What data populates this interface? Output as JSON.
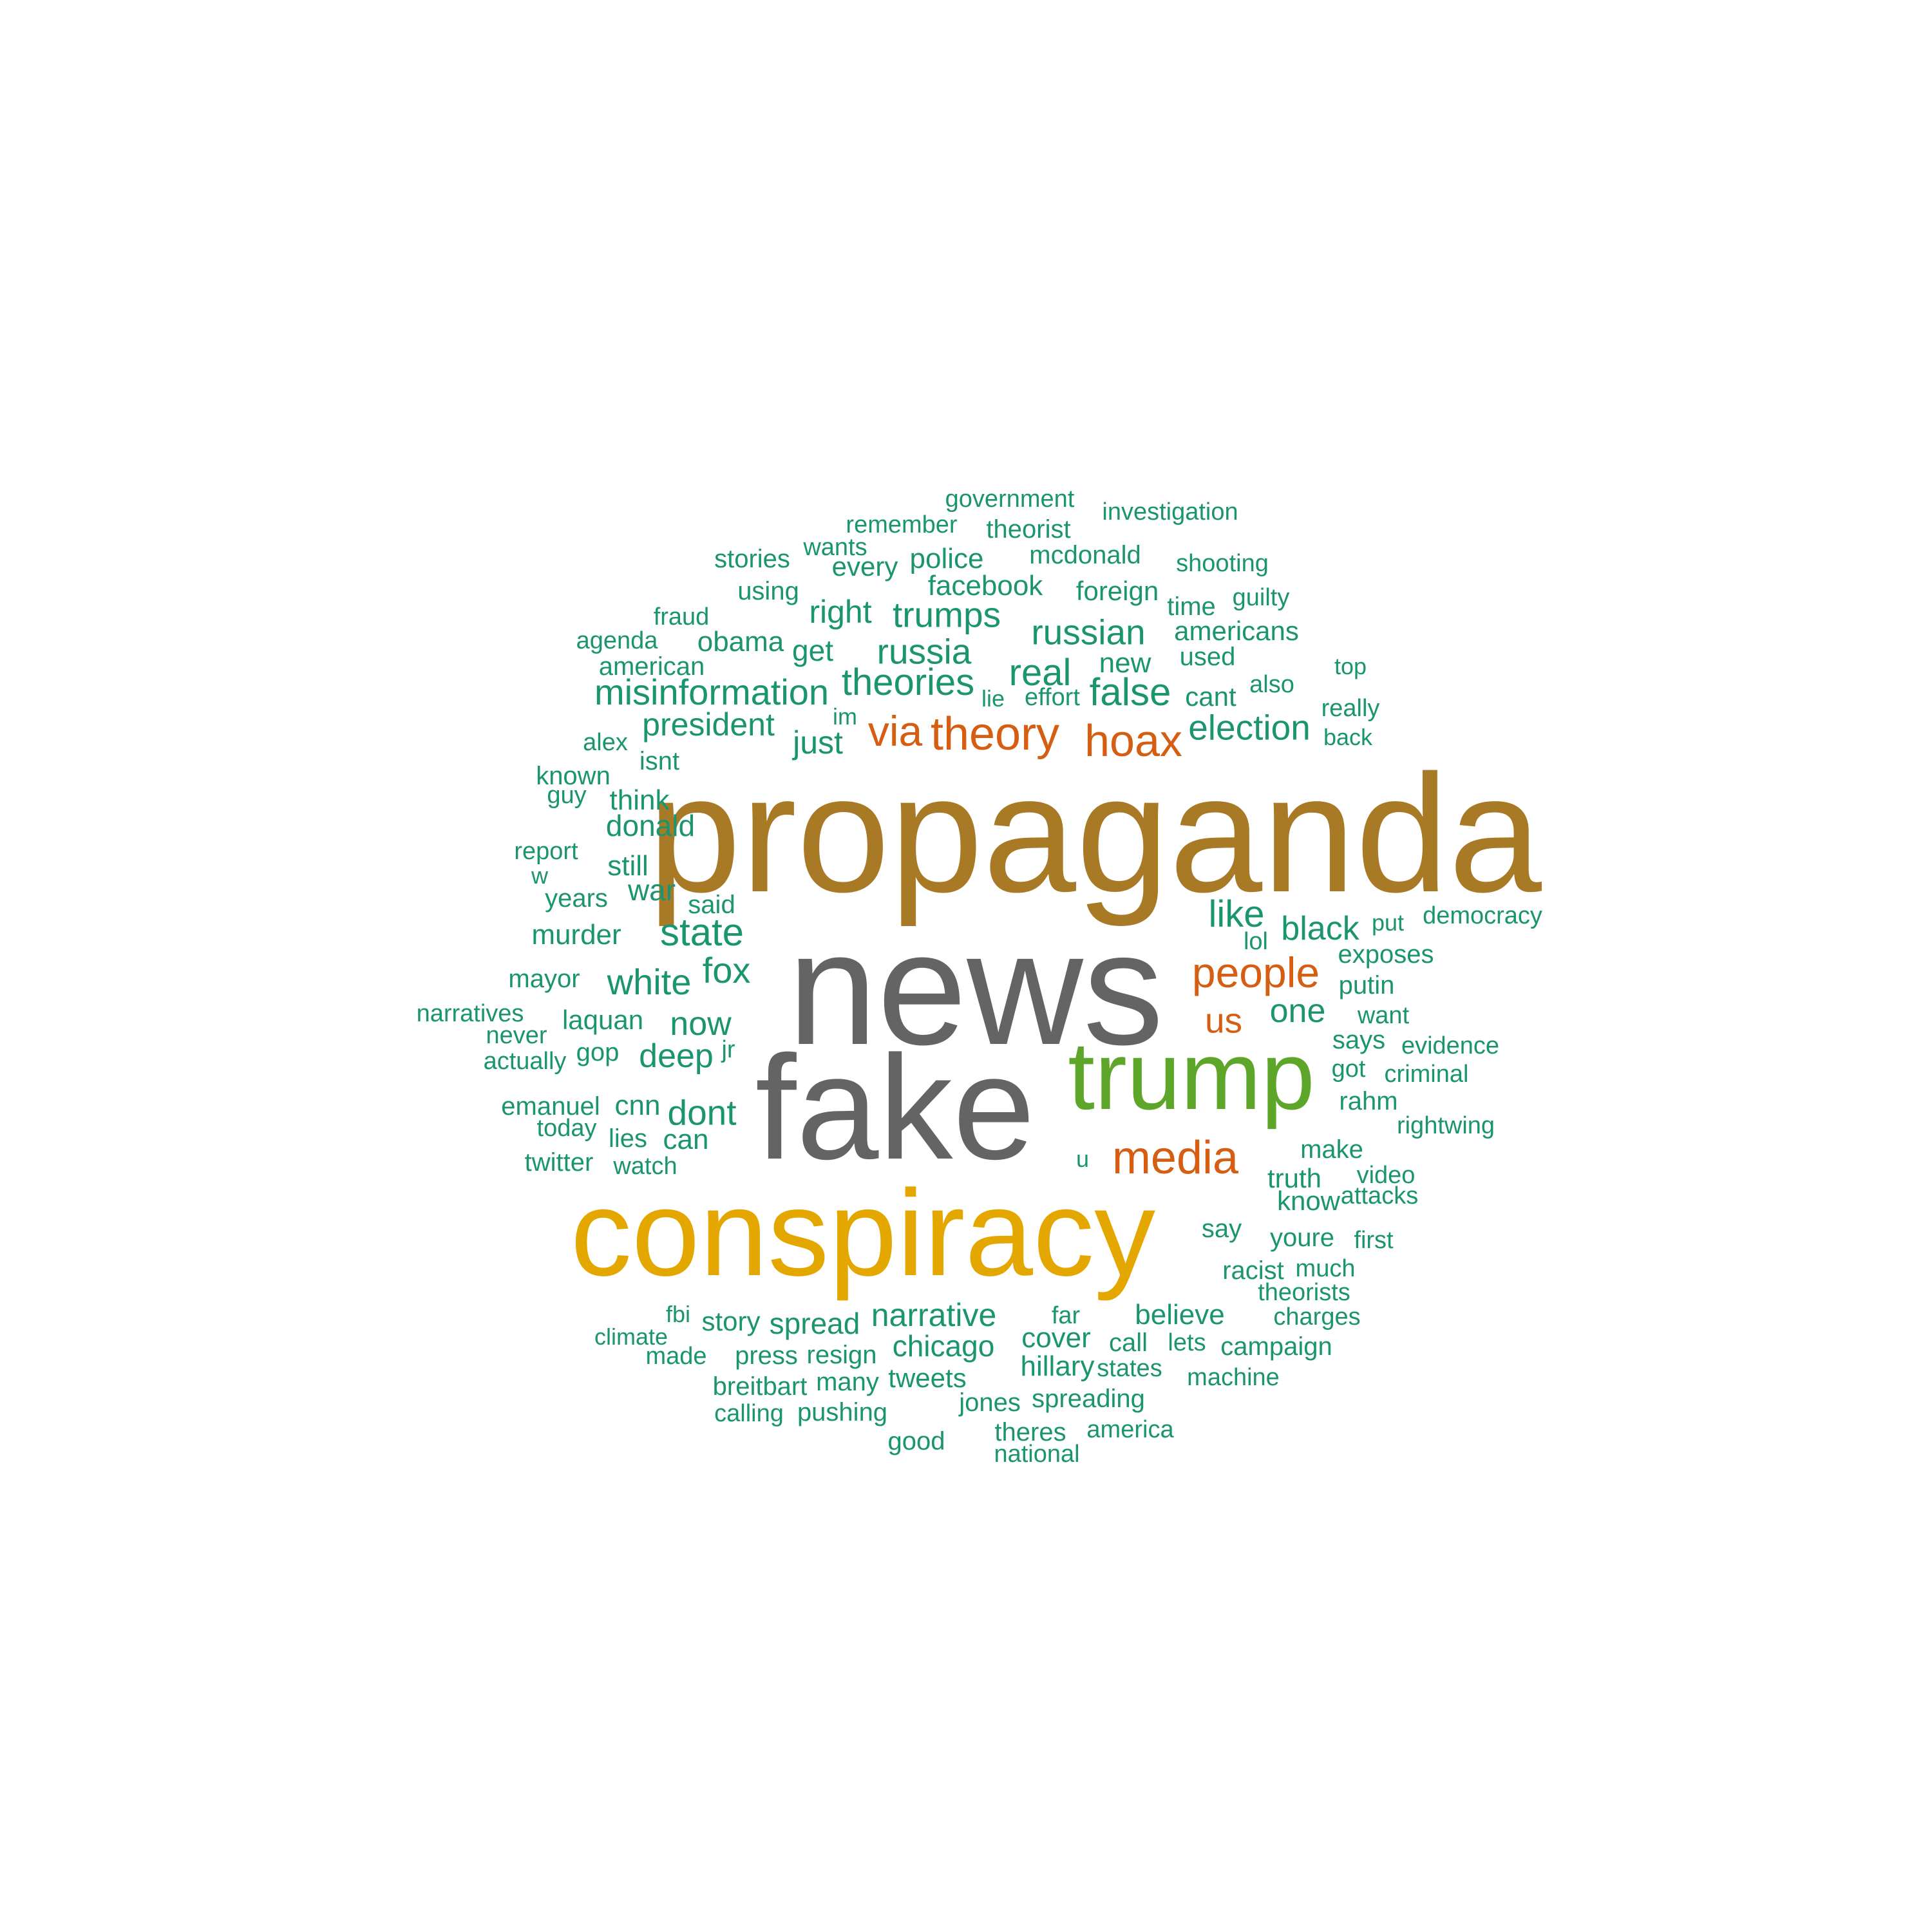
{
  "colors": {
    "gray": "#646464",
    "brown": "#a87a26",
    "gold": "#e4a700",
    "lime": "#5ea62a",
    "orange": "#d55e12",
    "teal": "#1b9570"
  },
  "words": [
    {
      "text": "propaganda",
      "color": "brown"
    },
    {
      "text": "news",
      "color": "gray"
    },
    {
      "text": "fake",
      "color": "gray"
    },
    {
      "text": "conspiracy",
      "color": "gold"
    },
    {
      "text": "trump",
      "color": "lime"
    },
    {
      "text": "media",
      "color": "orange"
    },
    {
      "text": "people",
      "color": "orange"
    },
    {
      "text": "hoax",
      "color": "orange"
    },
    {
      "text": "theory",
      "color": "orange"
    },
    {
      "text": "via",
      "color": "orange"
    },
    {
      "text": "us",
      "color": "orange"
    },
    {
      "text": "misinformation",
      "color": "teal"
    },
    {
      "text": "theories",
      "color": "teal"
    },
    {
      "text": "election",
      "color": "teal"
    },
    {
      "text": "false",
      "color": "teal"
    },
    {
      "text": "russian",
      "color": "teal"
    },
    {
      "text": "russia",
      "color": "teal"
    },
    {
      "text": "trumps",
      "color": "teal"
    },
    {
      "text": "real",
      "color": "teal"
    },
    {
      "text": "president",
      "color": "teal"
    },
    {
      "text": "just",
      "color": "teal"
    },
    {
      "text": "right",
      "color": "teal"
    },
    {
      "text": "state",
      "color": "teal"
    },
    {
      "text": "like",
      "color": "teal"
    },
    {
      "text": "black",
      "color": "teal"
    },
    {
      "text": "white",
      "color": "teal"
    },
    {
      "text": "fox",
      "color": "teal"
    },
    {
      "text": "now",
      "color": "teal"
    },
    {
      "text": "deep",
      "color": "teal"
    },
    {
      "text": "dont",
      "color": "teal"
    },
    {
      "text": "narrative",
      "color": "teal"
    },
    {
      "text": "chicago",
      "color": "teal"
    },
    {
      "text": "one",
      "color": "teal"
    },
    {
      "text": "get",
      "color": "teal"
    },
    {
      "text": "obama",
      "color": "teal"
    },
    {
      "text": "facebook",
      "color": "teal"
    },
    {
      "text": "police",
      "color": "teal"
    },
    {
      "text": "every",
      "color": "teal"
    },
    {
      "text": "donald",
      "color": "teal"
    },
    {
      "text": "think",
      "color": "teal"
    },
    {
      "text": "still",
      "color": "teal"
    },
    {
      "text": "war",
      "color": "teal"
    },
    {
      "text": "murder",
      "color": "teal"
    },
    {
      "text": "laquan",
      "color": "teal"
    },
    {
      "text": "cnn",
      "color": "teal"
    },
    {
      "text": "can",
      "color": "teal"
    },
    {
      "text": "story",
      "color": "teal"
    },
    {
      "text": "spread",
      "color": "teal"
    },
    {
      "text": "cover",
      "color": "teal"
    },
    {
      "text": "hillary",
      "color": "teal"
    },
    {
      "text": "believe",
      "color": "teal"
    },
    {
      "text": "call",
      "color": "teal"
    },
    {
      "text": "new",
      "color": "teal"
    },
    {
      "text": "cant",
      "color": "teal"
    },
    {
      "text": "used",
      "color": "teal"
    },
    {
      "text": "americans",
      "color": "teal"
    },
    {
      "text": "time",
      "color": "teal"
    },
    {
      "text": "foreign",
      "color": "teal"
    },
    {
      "text": "mcdonald",
      "color": "teal"
    },
    {
      "text": "theorist",
      "color": "teal"
    },
    {
      "text": "government",
      "color": "teal"
    },
    {
      "text": "remember",
      "color": "teal"
    },
    {
      "text": "investigation",
      "color": "teal"
    },
    {
      "text": "shooting",
      "color": "teal"
    },
    {
      "text": "guilty",
      "color": "teal"
    },
    {
      "text": "wants",
      "color": "teal"
    },
    {
      "text": "stories",
      "color": "teal"
    },
    {
      "text": "using",
      "color": "teal"
    },
    {
      "text": "fraud",
      "color": "teal"
    },
    {
      "text": "agenda",
      "color": "teal"
    },
    {
      "text": "american",
      "color": "teal"
    },
    {
      "text": "alex",
      "color": "teal"
    },
    {
      "text": "isnt",
      "color": "teal"
    },
    {
      "text": "known",
      "color": "teal"
    },
    {
      "text": "guy",
      "color": "teal"
    },
    {
      "text": "report",
      "color": "teal"
    },
    {
      "text": "w",
      "color": "teal"
    },
    {
      "text": "years",
      "color": "teal"
    },
    {
      "text": "said",
      "color": "teal"
    },
    {
      "text": "mayor",
      "color": "teal"
    },
    {
      "text": "narratives",
      "color": "teal"
    },
    {
      "text": "never",
      "color": "teal"
    },
    {
      "text": "actually",
      "color": "teal"
    },
    {
      "text": "gop",
      "color": "teal"
    },
    {
      "text": "jr",
      "color": "teal"
    },
    {
      "text": "emanuel",
      "color": "teal"
    },
    {
      "text": "today",
      "color": "teal"
    },
    {
      "text": "lies",
      "color": "teal"
    },
    {
      "text": "twitter",
      "color": "teal"
    },
    {
      "text": "watch",
      "color": "teal"
    },
    {
      "text": "effort",
      "color": "teal"
    },
    {
      "text": "lie",
      "color": "teal"
    },
    {
      "text": "im",
      "color": "teal"
    },
    {
      "text": "also",
      "color": "teal"
    },
    {
      "text": "top",
      "color": "teal"
    },
    {
      "text": "really",
      "color": "teal"
    },
    {
      "text": "back",
      "color": "teal"
    },
    {
      "text": "put",
      "color": "teal"
    },
    {
      "text": "democracy",
      "color": "teal"
    },
    {
      "text": "lol",
      "color": "teal"
    },
    {
      "text": "exposes",
      "color": "teal"
    },
    {
      "text": "putin",
      "color": "teal"
    },
    {
      "text": "want",
      "color": "teal"
    },
    {
      "text": "says",
      "color": "teal"
    },
    {
      "text": "evidence",
      "color": "teal"
    },
    {
      "text": "got",
      "color": "teal"
    },
    {
      "text": "criminal",
      "color": "teal"
    },
    {
      "text": "rahm",
      "color": "teal"
    },
    {
      "text": "rightwing",
      "color": "teal"
    },
    {
      "text": "make",
      "color": "teal"
    },
    {
      "text": "u",
      "color": "teal"
    },
    {
      "text": "truth",
      "color": "teal"
    },
    {
      "text": "video",
      "color": "teal"
    },
    {
      "text": "know",
      "color": "teal"
    },
    {
      "text": "attacks",
      "color": "teal"
    },
    {
      "text": "say",
      "color": "teal"
    },
    {
      "text": "youre",
      "color": "teal"
    },
    {
      "text": "first",
      "color": "teal"
    },
    {
      "text": "racist",
      "color": "teal"
    },
    {
      "text": "much",
      "color": "teal"
    },
    {
      "text": "theorists",
      "color": "teal"
    },
    {
      "text": "charges",
      "color": "teal"
    },
    {
      "text": "fbi",
      "color": "teal"
    },
    {
      "text": "climate",
      "color": "teal"
    },
    {
      "text": "made",
      "color": "teal"
    },
    {
      "text": "press",
      "color": "teal"
    },
    {
      "text": "resign",
      "color": "teal"
    },
    {
      "text": "breitbart",
      "color": "teal"
    },
    {
      "text": "many",
      "color": "teal"
    },
    {
      "text": "tweets",
      "color": "teal"
    },
    {
      "text": "calling",
      "color": "teal"
    },
    {
      "text": "pushing",
      "color": "teal"
    },
    {
      "text": "jones",
      "color": "teal"
    },
    {
      "text": "good",
      "color": "teal"
    },
    {
      "text": "far",
      "color": "teal"
    },
    {
      "text": "lets",
      "color": "teal"
    },
    {
      "text": "campaign",
      "color": "teal"
    },
    {
      "text": "states",
      "color": "teal"
    },
    {
      "text": "machine",
      "color": "teal"
    },
    {
      "text": "spreading",
      "color": "teal"
    },
    {
      "text": "theres",
      "color": "teal"
    },
    {
      "text": "america",
      "color": "teal"
    },
    {
      "text": "national",
      "color": "teal"
    }
  ]
}
